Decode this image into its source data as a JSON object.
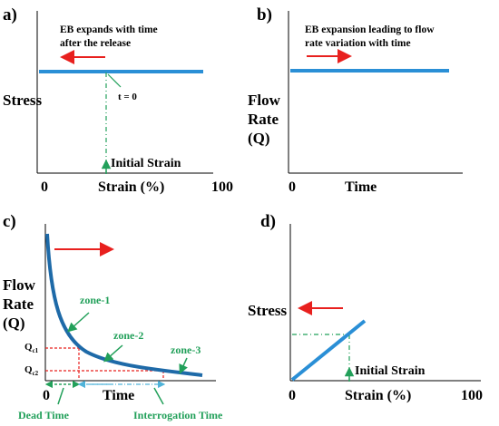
{
  "colors": {
    "curve": "#2a8fd6",
    "curve_dark": "#1e6aa8",
    "arrow": "#e8201e",
    "green": "#22a05a",
    "cyan_dash": "#4fb3d9"
  },
  "panel_a": {
    "label": "a)",
    "note_line1": "EB expands with time",
    "note_line2": "after the release",
    "ylabel": "Stress",
    "xlabel": "Strain (%)",
    "x0": "0",
    "x100": "100",
    "t0": "t = 0",
    "initial_strain": "Initial Strain"
  },
  "panel_b": {
    "label": "b)",
    "note_line1": "EB expansion leading to flow",
    "note_line2": "rate variation with time",
    "ylabel_line1": "Flow",
    "ylabel_line2": "Rate",
    "ylabel_line3": "(Q)",
    "xlabel": "Time",
    "x0": "0"
  },
  "panel_c": {
    "label": "c)",
    "ylabel_line1": "Flow",
    "ylabel_line2": "Rate",
    "ylabel_line3": "(Q)",
    "xlabel": "Time",
    "x0": "0",
    "zone1": "zone-1",
    "zone2": "zone-2",
    "zone3": "zone-3",
    "qc1": "Q",
    "qc1_sub": "c1",
    "qc2": "Q",
    "qc2_sub": "c2",
    "dead_time": "Dead Time",
    "interrogation_time": "Interrogation Time"
  },
  "panel_d": {
    "label": "d)",
    "ylabel": "Stress",
    "xlabel": "Strain (%)",
    "x0": "0",
    "x100": "100",
    "initial_strain": "Initial Strain"
  }
}
